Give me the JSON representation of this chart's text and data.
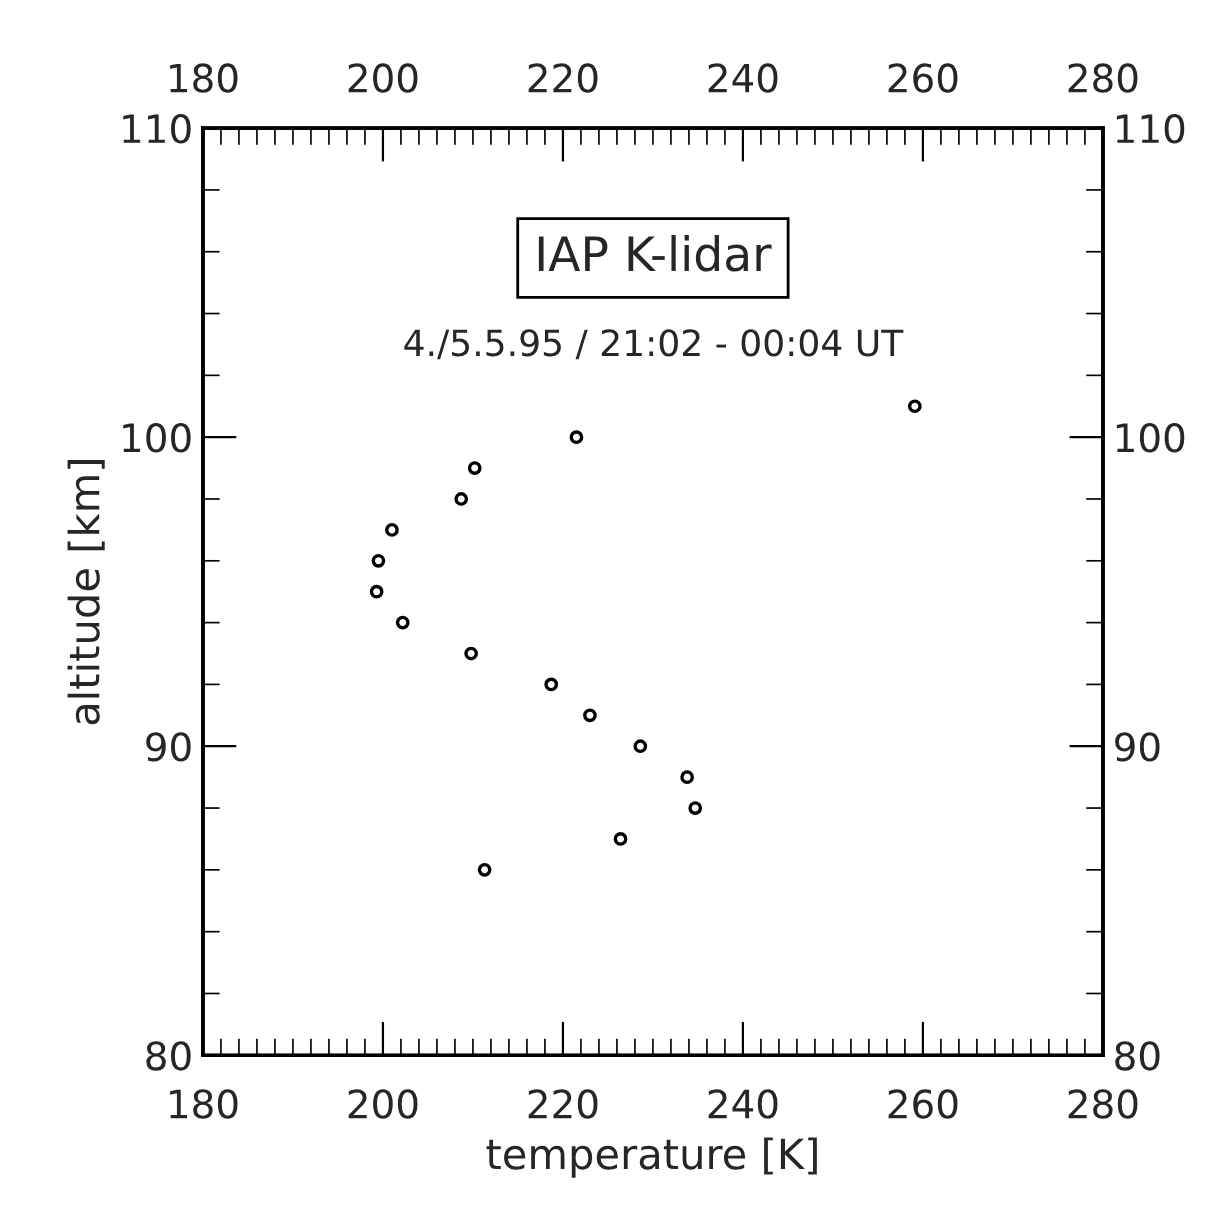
{
  "chart_data": {
    "type": "scatter",
    "title": "IAP K-lidar",
    "subtitle": "4./5.5.95 / 21:02 - 00:04 UT",
    "xlabel": "temperature [K]",
    "ylabel": "altitude [km]",
    "x": [
      221.5,
      210.2,
      208.7,
      201.0,
      199.5,
      199.3,
      202.2,
      209.8,
      218.7,
      223.0,
      228.6,
      233.8,
      234.7,
      226.4,
      211.3,
      259.1
    ],
    "series": [
      {
        "color": "#000000",
        "values": [
          100,
          99,
          98,
          97,
          96,
          95,
          94,
          93,
          92,
          91,
          90,
          89,
          88,
          87,
          86,
          101
        ]
      }
    ],
    "marker": "circle",
    "grid": false,
    "xlim": [
      180,
      280
    ],
    "xticks": [
      180,
      200,
      220,
      240,
      260,
      280
    ],
    "x2lim": [
      180,
      280
    ],
    "x2ticks": [
      180,
      200,
      220,
      240,
      260,
      280
    ],
    "ylim": [
      80,
      110
    ],
    "yticks": [
      80,
      90,
      100,
      110
    ],
    "y2lim": [
      80,
      110
    ],
    "y2ticks": [
      80,
      90,
      100,
      110
    ]
  }
}
